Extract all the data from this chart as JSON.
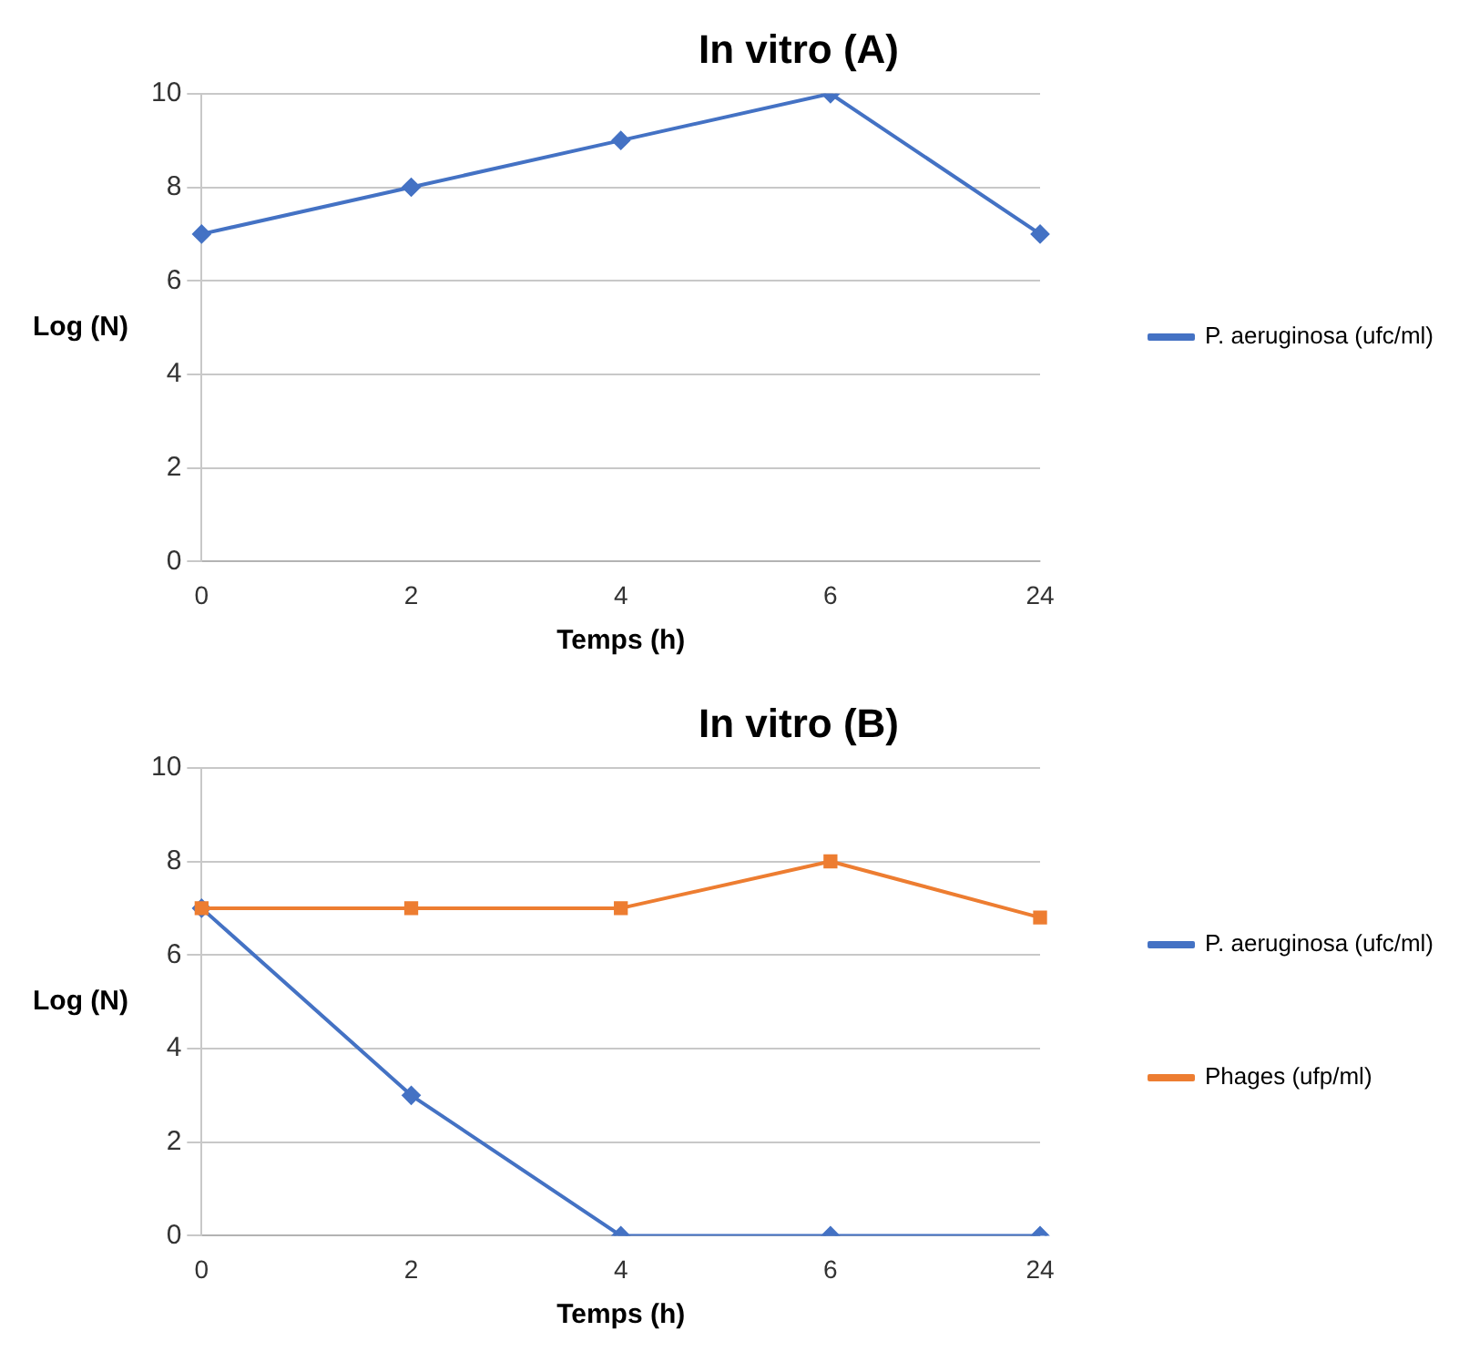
{
  "chart_data": [
    {
      "type": "line",
      "title": "In vitro (A)",
      "xlabel": "Temps (h)",
      "ylabel": "Log (N)",
      "categories": [
        "0",
        "2",
        "4",
        "6",
        "24"
      ],
      "series": [
        {
          "name": "P. aeruginosa (ufc/ml)",
          "color": "#4472c4",
          "marker": "diamond",
          "values": [
            7,
            8,
            9,
            10,
            7
          ]
        }
      ],
      "ylim": [
        0,
        10
      ],
      "yticks": [
        0,
        2,
        4,
        6,
        8,
        10
      ],
      "grid": "y",
      "legend": "right"
    },
    {
      "type": "line",
      "title": "In vitro (B)",
      "xlabel": "Temps (h)",
      "ylabel": "Log (N)",
      "categories": [
        "0",
        "2",
        "4",
        "6",
        "24"
      ],
      "series": [
        {
          "name": "P. aeruginosa (ufc/ml)",
          "color": "#4472c4",
          "marker": "diamond",
          "values": [
            7,
            3,
            0,
            0,
            0
          ]
        },
        {
          "name": "Phages (ufp/ml)",
          "color": "#ed7d31",
          "marker": "square",
          "values": [
            7,
            7,
            7,
            8,
            6.8
          ]
        }
      ],
      "ylim": [
        0,
        10
      ],
      "yticks": [
        0,
        2,
        4,
        6,
        8,
        10
      ],
      "grid": "y",
      "legend": "right"
    }
  ]
}
